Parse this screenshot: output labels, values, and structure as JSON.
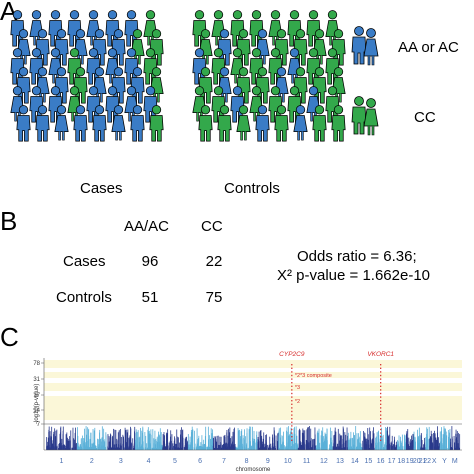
{
  "panel_a": {
    "letter": "A",
    "cases_label": "Cases",
    "controls_label": "Controls",
    "legend": [
      {
        "label": "AA or AC",
        "color": "#3a7cc6"
      },
      {
        "label": "CC",
        "color": "#33a84b"
      }
    ]
  },
  "panel_b": {
    "letter": "B",
    "columns": [
      "AA/AC",
      "CC"
    ],
    "rows": [
      {
        "label": "Cases",
        "values": [
          "96",
          "22"
        ]
      },
      {
        "label": "Controls",
        "values": [
          "51",
          "75"
        ]
      }
    ],
    "stats_line1": "Odds ratio = 6.36;",
    "stats_line2": "X² p-value = 1.662e-10"
  },
  "panel_c": {
    "letter": "C",
    "chart_data": {
      "type": "scatter",
      "xlabel": "chromosome",
      "ylabel": "-log10(p-value)",
      "yticks": [
        "7",
        "14",
        "17",
        "31",
        "78"
      ],
      "xticks": [
        "1",
        "2",
        "3",
        "4",
        "5",
        "6",
        "7",
        "8",
        "9",
        "10",
        "11",
        "12",
        "13",
        "14",
        "15",
        "16",
        "17",
        "18",
        "19",
        "20",
        "21",
        "22",
        "X",
        "Y",
        "M"
      ],
      "visible_xtick_labels": [
        "1",
        "2",
        "3",
        "4",
        "5",
        "6",
        "8",
        "10",
        "11",
        "13",
        "16",
        "17",
        "19",
        "21",
        "X",
        "M",
        "9",
        "12",
        "15",
        "18",
        "20",
        "22",
        "Y"
      ],
      "gene_labels": [
        "CYP2C9",
        "VKORC1"
      ],
      "annotations": [
        "*2*3 composite",
        "*3",
        "*2"
      ],
      "colors": {
        "odd": "#2a3a8c",
        "even": "#5ab0d8",
        "highlight": "#d62b2b",
        "band": "#fbf7d8"
      }
    }
  }
}
